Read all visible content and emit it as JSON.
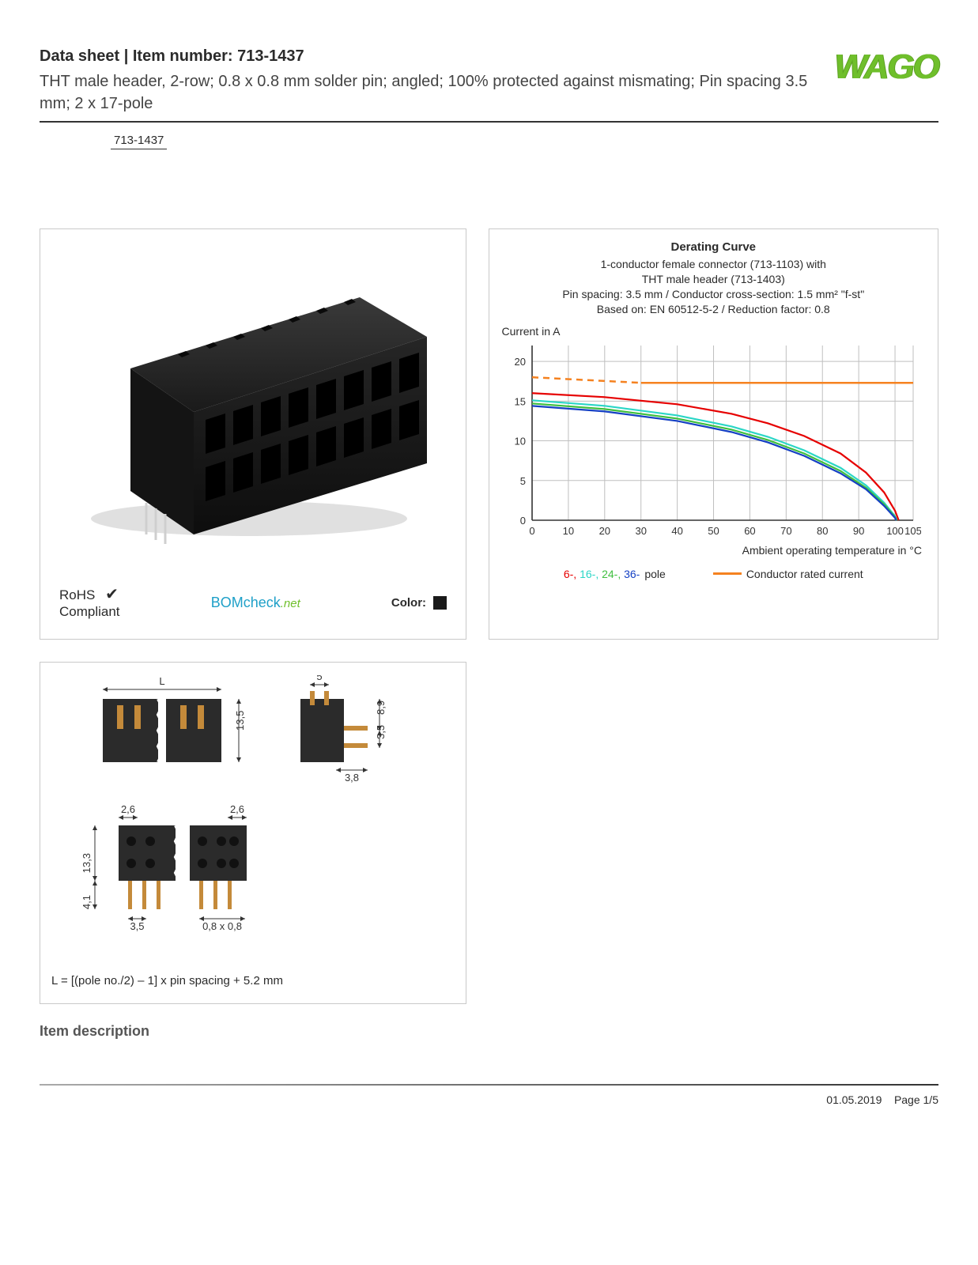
{
  "header": {
    "title": "Data sheet  |  Item number: 713-1437",
    "description": "THT male header, 2-row; 0.8 x 0.8 mm solder pin; angled; 100% protected against mismating; Pin spacing 3.5 mm; 2 x 17-pole",
    "part_badge": "713-1437",
    "logo_text": "WAGO"
  },
  "product_panel": {
    "rohs_line1": "RoHS",
    "rohs_line2": "Compliant",
    "bomcheck_text": "BOMcheck",
    "bomcheck_net": ".net",
    "color_label": "Color:",
    "swatch_color": "#1a1a1a",
    "connector_body_color": "#1f1f1f",
    "connector_highlight": "#4b4b4b",
    "pin_color": "#d0d0d0"
  },
  "chart": {
    "title": "Derating Curve",
    "sub1": "1-conductor female connector (713-1103) with",
    "sub2": "THT male header (713-1403)",
    "sub3": "Pin spacing: 3.5 mm / Conductor cross-section: 1.5 mm² \"f-st\"",
    "sub4": "Based on: EN 60512-5-2 / Reduction factor: 0.8",
    "y_axis_label": "Current in A",
    "x_axis_label": "Ambient operating temperature in °C",
    "xlim": [
      0,
      105
    ],
    "ylim": [
      0,
      22
    ],
    "xticks": [
      0,
      10,
      20,
      30,
      40,
      50,
      60,
      70,
      80,
      90,
      100,
      105
    ],
    "yticks": [
      0,
      5,
      10,
      15,
      20
    ],
    "grid_color": "#bfbfbf",
    "axis_color": "#333333",
    "plot_bg": "#ffffff",
    "series": {
      "rated": {
        "color": "#f58220",
        "width": 2.5,
        "dash_range": [
          0,
          30
        ],
        "points": [
          [
            0,
            18.0
          ],
          [
            30,
            17.3
          ],
          [
            60,
            17.3
          ],
          [
            105,
            17.3
          ]
        ]
      },
      "pole6": {
        "color": "#e60000",
        "width": 2.2,
        "points": [
          [
            0,
            16.0
          ],
          [
            20,
            15.5
          ],
          [
            40,
            14.6
          ],
          [
            55,
            13.4
          ],
          [
            65,
            12.2
          ],
          [
            75,
            10.6
          ],
          [
            85,
            8.4
          ],
          [
            92,
            6.0
          ],
          [
            97,
            3.5
          ],
          [
            100,
            1.2
          ],
          [
            101,
            0
          ]
        ]
      },
      "pole16": {
        "color": "#2bd6c6",
        "width": 2.2,
        "points": [
          [
            0,
            15.1
          ],
          [
            20,
            14.4
          ],
          [
            40,
            13.2
          ],
          [
            55,
            11.8
          ],
          [
            65,
            10.5
          ],
          [
            75,
            8.8
          ],
          [
            85,
            6.6
          ],
          [
            92,
            4.4
          ],
          [
            97,
            2.2
          ],
          [
            100,
            0.5
          ],
          [
            100.5,
            0
          ]
        ]
      },
      "pole24": {
        "color": "#3fbf3f",
        "width": 2.2,
        "points": [
          [
            0,
            14.7
          ],
          [
            20,
            14.0
          ],
          [
            40,
            12.8
          ],
          [
            55,
            11.4
          ],
          [
            65,
            10.1
          ],
          [
            75,
            8.4
          ],
          [
            85,
            6.2
          ],
          [
            92,
            4.1
          ],
          [
            97,
            2.0
          ],
          [
            100,
            0.4
          ],
          [
            100.5,
            0
          ]
        ]
      },
      "pole36": {
        "color": "#1540c4",
        "width": 2.2,
        "points": [
          [
            0,
            14.4
          ],
          [
            20,
            13.7
          ],
          [
            40,
            12.5
          ],
          [
            55,
            11.1
          ],
          [
            65,
            9.8
          ],
          [
            75,
            8.1
          ],
          [
            85,
            5.9
          ],
          [
            92,
            3.9
          ],
          [
            97,
            1.8
          ],
          [
            100,
            0.3
          ],
          [
            100.3,
            0
          ]
        ]
      }
    },
    "legend": {
      "items": [
        {
          "label": "6-,",
          "color": "#e60000"
        },
        {
          "label": "16-,",
          "color": "#2bd6c6"
        },
        {
          "label": "24-,",
          "color": "#3fbf3f"
        },
        {
          "label": "36-",
          "color": "#1540c4"
        }
      ],
      "suffix": "pole",
      "rated_label": "Conductor rated current",
      "rated_color": "#f58220"
    }
  },
  "dimensions": {
    "labels": {
      "L": "L",
      "d5": "5",
      "d13_5": "13,5",
      "d8_9": "8,9",
      "d3_5s": "3,5",
      "d3_8": "3,8",
      "d2_6a": "2,6",
      "d2_6b": "2,6",
      "d13_3": "13,3",
      "d4_1": "4,1",
      "d3_5": "3,5",
      "d08": "0,8 x 0,8"
    },
    "formula": "L = [(pole no./2) – 1] x pin spacing + 5.2 mm",
    "body_color": "#2b2b2b",
    "pin_color": "#c48a3a",
    "line_color": "#333333"
  },
  "section_heading": "Item description",
  "footer": {
    "date": "01.05.2019",
    "page": "Page 1/5"
  }
}
